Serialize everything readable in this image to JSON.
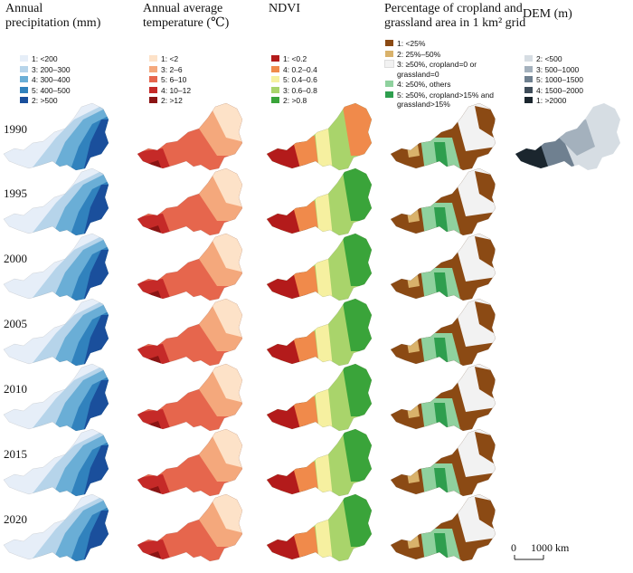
{
  "columns": [
    {
      "id": "precip",
      "title": [
        "Annual",
        "precipitation (mm)"
      ],
      "legend": [
        {
          "label": "1: <200",
          "color": "#e6eef8"
        },
        {
          "label": "3: 200–300",
          "color": "#b6d4ea"
        },
        {
          "label": "4: 300–400",
          "color": "#6aaed6"
        },
        {
          "label": "5: 400–500",
          "color": "#3182bd"
        },
        {
          "label": "2: >500",
          "color": "#1a4f9c"
        }
      ]
    },
    {
      "id": "temp",
      "title": [
        "Annual average",
        "temperature (℃)"
      ],
      "legend": [
        {
          "label": "1: <2",
          "color": "#fde2c8"
        },
        {
          "label": "3: 2–6",
          "color": "#f4a87c"
        },
        {
          "label": "5: 6–10",
          "color": "#e6664d"
        },
        {
          "label": "4: 10–12",
          "color": "#c52a28"
        },
        {
          "label": "2: >12",
          "color": "#8b1414"
        }
      ]
    },
    {
      "id": "ndvi",
      "title": [
        "NDVI"
      ],
      "legend": [
        {
          "label": "1: <0.2",
          "color": "#b31b1b"
        },
        {
          "label": "4: 0.2–0.4",
          "color": "#f08a4b"
        },
        {
          "label": "5: 0.4–0.6",
          "color": "#f6f0a0"
        },
        {
          "label": "3: 0.6–0.8",
          "color": "#a9d46b"
        },
        {
          "label": "2: >0.8",
          "color": "#3aa43a"
        }
      ]
    },
    {
      "id": "crop",
      "title": [
        "Percentage of cropland and",
        "grassland area in 1 km² grid"
      ],
      "legend": [
        {
          "label": "1: <25%",
          "color": "#8b4a14"
        },
        {
          "label": "2: 25%–50%",
          "color": "#d9b26b"
        },
        {
          "label": "3: ≥50%, cropland=0 or grassland=0",
          "color": "#f2f2f2"
        },
        {
          "label": "4: ≥50%, others",
          "color": "#8fd19e"
        },
        {
          "label": "5: ≥50%, cropland>15% and grassland>15%",
          "color": "#2e9e4e"
        }
      ]
    },
    {
      "id": "dem",
      "title": [
        "DEM (m)"
      ],
      "legend": [
        {
          "label": "2: <500",
          "color": "#d6dde3"
        },
        {
          "label": "3: 500–1000",
          "color": "#a4b1bd"
        },
        {
          "label": "5: 1000–1500",
          "color": "#6f8090"
        },
        {
          "label": "4: 1500–2000",
          "color": "#3f4d5a"
        },
        {
          "label": "1: >2000",
          "color": "#1b262e"
        }
      ]
    }
  ],
  "years": [
    "1990",
    "1995",
    "2000",
    "2005",
    "2010",
    "2015",
    "2020"
  ],
  "scale_bar": {
    "start": "0",
    "end": "1000 km"
  }
}
